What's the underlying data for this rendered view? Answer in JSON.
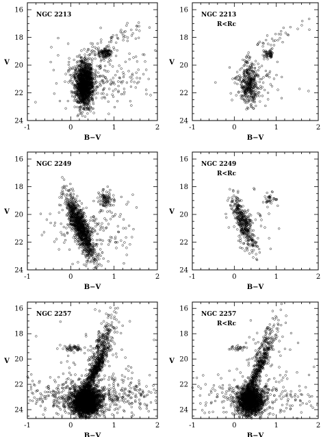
{
  "chart_data": [
    {
      "type": "scatter",
      "panel": "ngc2213-all",
      "xlabel": "B−V",
      "ylabel": "V",
      "xlim": [
        -1,
        2
      ],
      "ylim": [
        24,
        15.5
      ],
      "xticks": [
        "-1",
        "0",
        "1",
        "2"
      ],
      "yticks": [
        "16",
        "18",
        "20",
        "22",
        "24"
      ],
      "annotation": [
        "NGC 2213"
      ],
      "seed": 11,
      "clumps": [
        {
          "n": 1450,
          "cx": 0.32,
          "cy": 21.4,
          "sx": 0.1,
          "sy": 0.75,
          "tx": 0.0
        },
        {
          "n": 120,
          "cx": 0.8,
          "cy": 19.15,
          "sx": 0.08,
          "sy": 0.2,
          "tx": 0.0
        },
        {
          "n": 60,
          "cx": 1.0,
          "cy": 18.1,
          "sx": 0.25,
          "sy": 0.7,
          "tx": -0.5
        },
        {
          "n": 180,
          "cx": 0.5,
          "cy": 21.0,
          "sx": 0.45,
          "sy": 1.1,
          "tx": 0.0
        },
        {
          "n": 60,
          "cx": 0.9,
          "cy": 20.7,
          "sx": 0.55,
          "sy": 1.0,
          "tx": 0.0
        }
      ]
    },
    {
      "type": "scatter",
      "panel": "ngc2213-core",
      "xlabel": "B−V",
      "ylabel": "V",
      "xlim": [
        -1,
        2
      ],
      "ylim": [
        24,
        15.5
      ],
      "xticks": [
        "-1",
        "0",
        "1",
        "2"
      ],
      "yticks": [
        "16",
        "18",
        "20",
        "22",
        "24"
      ],
      "annotation": [
        "NGC 2213",
        "R<Rc"
      ],
      "seed": 23,
      "clumps": [
        {
          "n": 380,
          "cx": 0.35,
          "cy": 21.3,
          "sx": 0.11,
          "sy": 0.75,
          "tx": 0.0
        },
        {
          "n": 55,
          "cx": 0.82,
          "cy": 19.15,
          "sx": 0.07,
          "sy": 0.18,
          "tx": 0.0
        },
        {
          "n": 30,
          "cx": 1.05,
          "cy": 18.0,
          "sx": 0.22,
          "sy": 0.6,
          "tx": -0.5
        },
        {
          "n": 60,
          "cx": 0.5,
          "cy": 20.8,
          "sx": 0.4,
          "sy": 1.0,
          "tx": 0.0
        }
      ]
    },
    {
      "type": "scatter",
      "panel": "ngc2249-all",
      "xlabel": "B−V",
      "ylabel": "V",
      "xlim": [
        -1,
        2
      ],
      "ylim": [
        24,
        15.5
      ],
      "xticks": [
        "-1",
        "0",
        "1",
        "2"
      ],
      "yticks": [
        "16",
        "18",
        "20",
        "22",
        "24"
      ],
      "annotation": [
        "NGC 2249"
      ],
      "seed": 37,
      "clumps": [
        {
          "n": 1050,
          "cx": 0.22,
          "cy": 20.9,
          "sx": 0.09,
          "sy": 1.1,
          "tx": 0.12
        },
        {
          "n": 90,
          "cx": 0.82,
          "cy": 18.9,
          "sx": 0.08,
          "sy": 0.3,
          "tx": 0.0
        },
        {
          "n": 160,
          "cx": 0.45,
          "cy": 21.2,
          "sx": 0.45,
          "sy": 1.3,
          "tx": 0.0
        },
        {
          "n": 40,
          "cx": 0.8,
          "cy": 20.5,
          "sx": 0.6,
          "sy": 1.1,
          "tx": 0.0
        }
      ]
    },
    {
      "type": "scatter",
      "panel": "ngc2249-core",
      "xlabel": "B−V",
      "ylabel": "V",
      "xlim": [
        -1,
        2
      ],
      "ylim": [
        24,
        15.5
      ],
      "xticks": [
        "-1",
        "0",
        "1",
        "2"
      ],
      "yticks": [
        "16",
        "18",
        "20",
        "22",
        "24"
      ],
      "annotation": [
        "NGC 2249",
        "R<Rc"
      ],
      "seed": 41,
      "clumps": [
        {
          "n": 380,
          "cx": 0.22,
          "cy": 20.6,
          "sx": 0.09,
          "sy": 1.0,
          "tx": 0.12
        },
        {
          "n": 35,
          "cx": 0.85,
          "cy": 18.9,
          "sx": 0.08,
          "sy": 0.25,
          "tx": 0.0
        },
        {
          "n": 40,
          "cx": 0.4,
          "cy": 20.8,
          "sx": 0.35,
          "sy": 1.0,
          "tx": 0.0
        }
      ]
    },
    {
      "type": "scatter",
      "panel": "ngc2257-all",
      "xlabel": "B−V",
      "ylabel": "V",
      "xlim": [
        -1,
        2
      ],
      "ylim": [
        24.7,
        15.5
      ],
      "xticks": [
        "-1",
        "0",
        "1",
        "2"
      ],
      "yticks": [
        "16",
        "18",
        "20",
        "22",
        "24"
      ],
      "annotation": [
        "NGC 2257"
      ],
      "seed": 53,
      "clumps": [
        {
          "n": 2300,
          "cx": 0.35,
          "cy": 23.4,
          "sx": 0.16,
          "sy": 0.55,
          "tx": 0.0
        },
        {
          "n": 600,
          "cx": 0.55,
          "cy": 21.0,
          "sx": 0.06,
          "sy": 1.2,
          "tx": -0.14
        },
        {
          "n": 160,
          "cx": 0.72,
          "cy": 18.6,
          "sx": 0.08,
          "sy": 1.0,
          "tx": -0.12
        },
        {
          "n": 50,
          "cx": 0.05,
          "cy": 19.15,
          "sx": 0.12,
          "sy": 0.12,
          "tx": 0.0
        },
        {
          "n": 550,
          "cx": 0.5,
          "cy": 22.9,
          "sx": 0.75,
          "sy": 0.75,
          "tx": 0.0
        },
        {
          "n": 60,
          "cx": 0.7,
          "cy": 19.5,
          "sx": 0.5,
          "sy": 1.5,
          "tx": 0.0
        }
      ]
    },
    {
      "type": "scatter",
      "panel": "ngc2257-core",
      "xlabel": "B−V",
      "ylabel": "V",
      "xlim": [
        -1,
        2
      ],
      "ylim": [
        24.7,
        15.5
      ],
      "xticks": [
        "-1",
        "0",
        "1",
        "2"
      ],
      "yticks": [
        "16",
        "18",
        "20",
        "22",
        "24"
      ],
      "annotation": [
        "NGC 2257",
        "R<Rc"
      ],
      "seed": 67,
      "clumps": [
        {
          "n": 1500,
          "cx": 0.38,
          "cy": 23.3,
          "sx": 0.15,
          "sy": 0.55,
          "tx": 0.0
        },
        {
          "n": 400,
          "cx": 0.55,
          "cy": 21.0,
          "sx": 0.06,
          "sy": 1.2,
          "tx": -0.14
        },
        {
          "n": 90,
          "cx": 0.72,
          "cy": 18.6,
          "sx": 0.08,
          "sy": 0.9,
          "tx": -0.12
        },
        {
          "n": 25,
          "cx": 0.08,
          "cy": 19.15,
          "sx": 0.1,
          "sy": 0.1,
          "tx": 0.0
        },
        {
          "n": 260,
          "cx": 0.55,
          "cy": 22.8,
          "sx": 0.75,
          "sy": 0.75,
          "tx": 0.0
        },
        {
          "n": 35,
          "cx": 0.7,
          "cy": 19.5,
          "sx": 0.5,
          "sy": 1.5,
          "tx": 0.0
        }
      ]
    }
  ]
}
